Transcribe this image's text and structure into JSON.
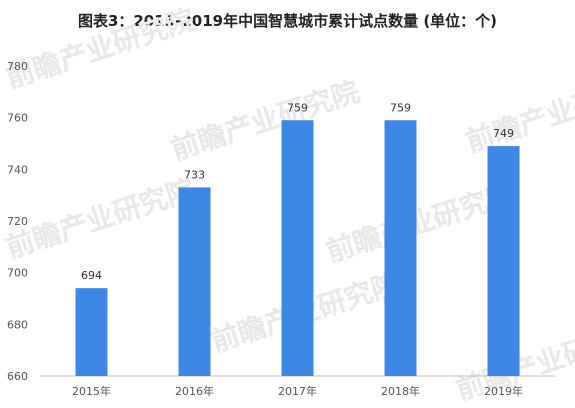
{
  "chart_data": {
    "type": "bar",
    "title": "图表3：2015-2019年中国智慧城市累计试点数量 (单位：个)",
    "categories": [
      "2015年",
      "2016年",
      "2017年",
      "2018年",
      "2019年"
    ],
    "values": [
      694,
      733,
      759,
      759,
      749
    ],
    "xlabel": "",
    "ylabel": "",
    "ylim": [
      660,
      780
    ],
    "yticks": [
      660,
      680,
      700,
      720,
      740,
      760,
      780
    ],
    "grid": false,
    "legend": "none",
    "bar_color": "#3f87e5"
  },
  "watermark_text": "前瞻产业研究院"
}
